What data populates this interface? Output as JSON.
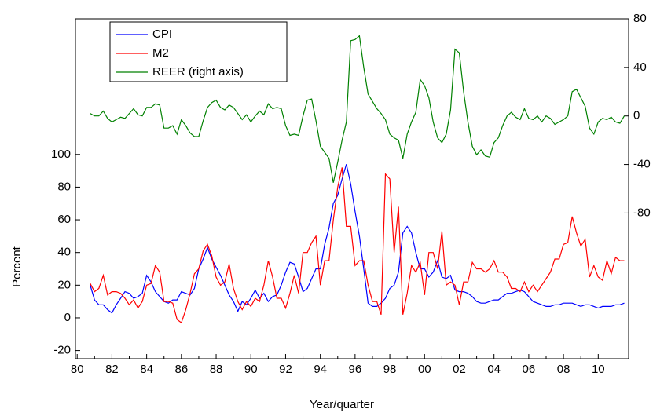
{
  "chart_data": {
    "type": "line",
    "x_label": "Year/quarter",
    "y_label": "Percent",
    "x": [
      1980.75,
      1981,
      1981.25,
      1981.5,
      1981.75,
      1982,
      1982.25,
      1982.5,
      1982.75,
      1983,
      1983.25,
      1983.5,
      1983.75,
      1984,
      1984.25,
      1984.5,
      1984.75,
      1985,
      1985.25,
      1985.5,
      1985.75,
      1986,
      1986.25,
      1986.5,
      1986.75,
      1987,
      1987.25,
      1987.5,
      1987.75,
      1988,
      1988.25,
      1988.5,
      1988.75,
      1989,
      1989.25,
      1989.5,
      1989.75,
      1990,
      1990.25,
      1990.5,
      1990.75,
      1991,
      1991.25,
      1991.5,
      1991.75,
      1992,
      1992.25,
      1992.5,
      1992.75,
      1993,
      1993.25,
      1993.5,
      1993.75,
      1994,
      1994.25,
      1994.5,
      1994.75,
      1995,
      1995.25,
      1995.5,
      1995.75,
      1996,
      1996.25,
      1996.5,
      1996.75,
      1997,
      1997.25,
      1997.5,
      1997.75,
      1998,
      1998.25,
      1998.5,
      1998.75,
      1999,
      1999.25,
      1999.5,
      1999.75,
      2000,
      2000.25,
      2000.5,
      2000.75,
      2001,
      2001.25,
      2001.5,
      2001.75,
      2002,
      2002.25,
      2002.5,
      2002.75,
      2003,
      2003.25,
      2003.5,
      2003.75,
      2004,
      2004.25,
      2004.5,
      2004.75,
      2005,
      2005.25,
      2005.5,
      2005.75,
      2006,
      2006.25,
      2006.5,
      2006.75,
      2007,
      2007.25,
      2007.5,
      2007.75,
      2008,
      2008.25,
      2008.5,
      2008.75,
      2009,
      2009.25,
      2009.5,
      2009.75,
      2010,
      2010.25,
      2010.5,
      2010.75,
      2011,
      2011.25,
      2011.5
    ],
    "series": [
      {
        "name": "CPI",
        "color": "#0000ff",
        "values": [
          20,
          11,
          8,
          8,
          5,
          3,
          8,
          12,
          16,
          15,
          12,
          13,
          15,
          26,
          22,
          16,
          13,
          10,
          9,
          11,
          11,
          16,
          15,
          14,
          18,
          30,
          36,
          43,
          36,
          31,
          26,
          20,
          14,
          10,
          4,
          10,
          8,
          12,
          17,
          12,
          15,
          10,
          13,
          14,
          20,
          28,
          34,
          33,
          25,
          16,
          18,
          24,
          30,
          30,
          45,
          55,
          70,
          75,
          85,
          94,
          82,
          65,
          50,
          30,
          9,
          7,
          7,
          9,
          12,
          18,
          20,
          28,
          52,
          56,
          52,
          40,
          30,
          30,
          25,
          28,
          35,
          25,
          24,
          26,
          17,
          16,
          16,
          15,
          13,
          10,
          9,
          9,
          10,
          11,
          11,
          13,
          15,
          15,
          16,
          17,
          16,
          13,
          10,
          9,
          8,
          7,
          7,
          8,
          8,
          9,
          9,
          9,
          8,
          7,
          8,
          8,
          7,
          6,
          7,
          7,
          7,
          8,
          8,
          9
        ]
      },
      {
        "name": "M2",
        "color": "#ff0000",
        "values": [
          21,
          16,
          18,
          26,
          14,
          16,
          16,
          15,
          12,
          8,
          11,
          6,
          10,
          20,
          21,
          32,
          28,
          10,
          10,
          9,
          -1,
          -3,
          5,
          15,
          27,
          30,
          41,
          45,
          38,
          25,
          20,
          22,
          33,
          18,
          10,
          5,
          10,
          7,
          12,
          10,
          20,
          35,
          25,
          12,
          12,
          6,
          15,
          26,
          15,
          40,
          40,
          46,
          50,
          20,
          35,
          35,
          60,
          80,
          92,
          56,
          56,
          32,
          35,
          35,
          20,
          10,
          10,
          2,
          88,
          85,
          40,
          68,
          2,
          15,
          32,
          28,
          34,
          14,
          40,
          40,
          30,
          53,
          20,
          22,
          20,
          8,
          22,
          22,
          34,
          30,
          30,
          28,
          30,
          35,
          28,
          28,
          25,
          18,
          18,
          16,
          22,
          16,
          20,
          16,
          20,
          24,
          28,
          36,
          36,
          45,
          46,
          62,
          52,
          44,
          48,
          25,
          32,
          25,
          23,
          35,
          27,
          37,
          35,
          35
        ]
      },
      {
        "name": "REER (right axis)",
        "color": "#008000",
        "axis": "y2",
        "values": [
          2,
          0,
          0,
          4,
          -2,
          -5,
          -3,
          -1,
          -2,
          2,
          6,
          1,
          0,
          7,
          7,
          10,
          9,
          -10,
          -10,
          -8,
          -15,
          -3,
          -8,
          -14,
          -17,
          -17,
          -4,
          7,
          11,
          13,
          7,
          5,
          9,
          7,
          2,
          -3,
          1,
          -5,
          0,
          4,
          1,
          10,
          6,
          7,
          6,
          -8,
          -16,
          -15,
          -16,
          0,
          13,
          14,
          -4,
          -25,
          -30,
          -35,
          -55,
          -38,
          -20,
          -5,
          62,
          63,
          66,
          40,
          18,
          12,
          6,
          2,
          -3,
          -15,
          -18,
          -20,
          -35,
          -15,
          -5,
          3,
          30,
          25,
          15,
          -5,
          -18,
          -22,
          -15,
          5,
          55,
          52,
          20,
          -5,
          -25,
          -32,
          -28,
          -33,
          -34,
          -22,
          -18,
          -8,
          0,
          3,
          -1,
          -3,
          6,
          -2,
          -3,
          0,
          -5,
          0,
          -2,
          -7,
          -5,
          -3,
          0,
          20,
          22,
          15,
          8,
          -10,
          -15,
          -5,
          -2,
          -3,
          -1,
          -5,
          -6,
          0
        ]
      }
    ],
    "xlim": [
      1979.9,
      2011.75
    ],
    "xticks": [
      {
        "value": 1980,
        "label": "80"
      },
      {
        "value": 1982,
        "label": "82"
      },
      {
        "value": 1984,
        "label": "84"
      },
      {
        "value": 1986,
        "label": "86"
      },
      {
        "value": 1988,
        "label": "88"
      },
      {
        "value": 1990,
        "label": "90"
      },
      {
        "value": 1992,
        "label": "92"
      },
      {
        "value": 1994,
        "label": "94"
      },
      {
        "value": 1996,
        "label": "96"
      },
      {
        "value": 1998,
        "label": "98"
      },
      {
        "value": 2000,
        "label": "00"
      },
      {
        "value": 2002,
        "label": "02"
      },
      {
        "value": 2004,
        "label": "04"
      },
      {
        "value": 2006,
        "label": "06"
      },
      {
        "value": 2008,
        "label": "08"
      },
      {
        "value": 2010,
        "label": "10"
      }
    ],
    "ylim": [
      -25,
      183
    ],
    "yticks": [
      -20,
      0,
      20,
      40,
      60,
      80,
      100
    ],
    "y2lim": [
      -200,
      80
    ],
    "y2ticks": [
      -80,
      -40,
      0,
      40,
      80
    ],
    "legend": "upper left",
    "grid": false
  }
}
